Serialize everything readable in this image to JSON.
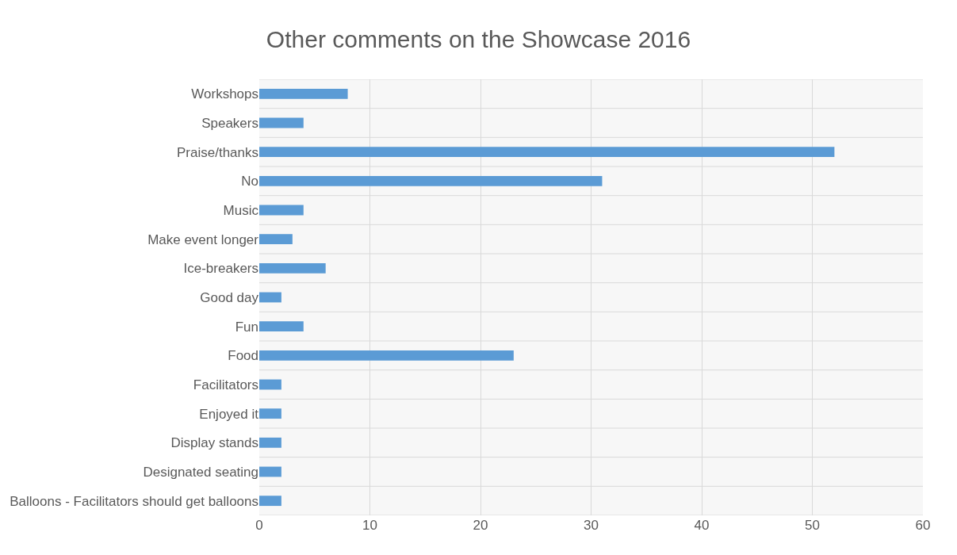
{
  "chart_data": {
    "type": "bar",
    "orientation": "horizontal",
    "title": "Other comments on the Showcase 2016",
    "categories": [
      "Workshops",
      "Speakers",
      "Praise/thanks",
      "No",
      "Music",
      "Make event longer",
      "Ice-breakers",
      "Good day",
      "Fun",
      "Food",
      "Facilitators",
      "Enjoyed it",
      "Display stands",
      "Designated seating",
      "Balloons - Facilitators should get balloons"
    ],
    "values": [
      8,
      4,
      52,
      31,
      4,
      3,
      6,
      2,
      4,
      23,
      2,
      2,
      2,
      2,
      2
    ],
    "color": "#5b9bd5",
    "xlim": [
      0,
      60
    ],
    "xticks": [
      0,
      10,
      20,
      30,
      40,
      50,
      60
    ],
    "grid": true
  }
}
